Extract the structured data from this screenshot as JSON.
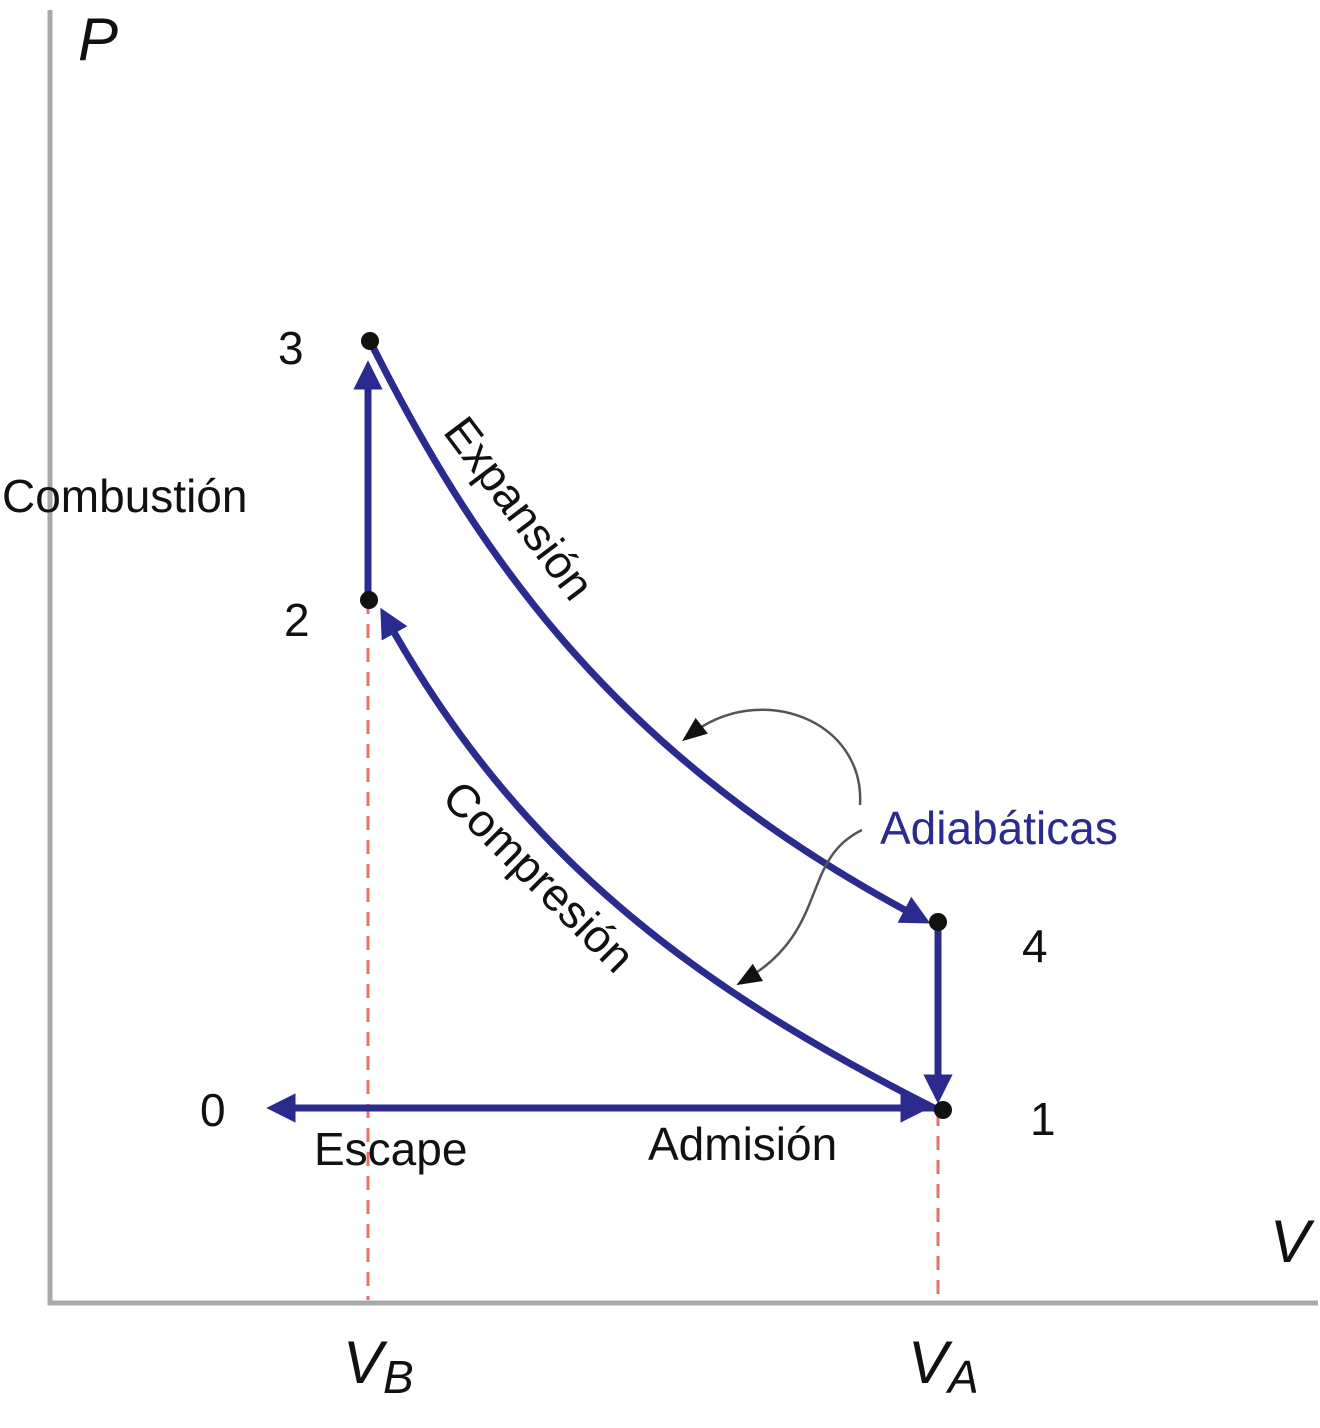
{
  "axes": {
    "y_label": "P",
    "x_label": "V",
    "tick_vb_main": "V",
    "tick_vb_sub": "B",
    "tick_va_main": "V",
    "tick_va_sub": "A"
  },
  "points": {
    "p0": "0",
    "p1": "1",
    "p2": "2",
    "p3": "3",
    "p4": "4"
  },
  "processes": {
    "combustion": "Combustión",
    "expansion": "Expansión",
    "compression": "Compresión",
    "escape": "Escape",
    "admission": "Admisión",
    "adiabatic": "Adiabáticas"
  },
  "colors": {
    "cycle": "#2b2a8f",
    "adiabatic_label": "#2b2a8f",
    "guide_dashed": "#e8706a",
    "axis": "#a9a9a9",
    "callout": "#555555"
  }
}
